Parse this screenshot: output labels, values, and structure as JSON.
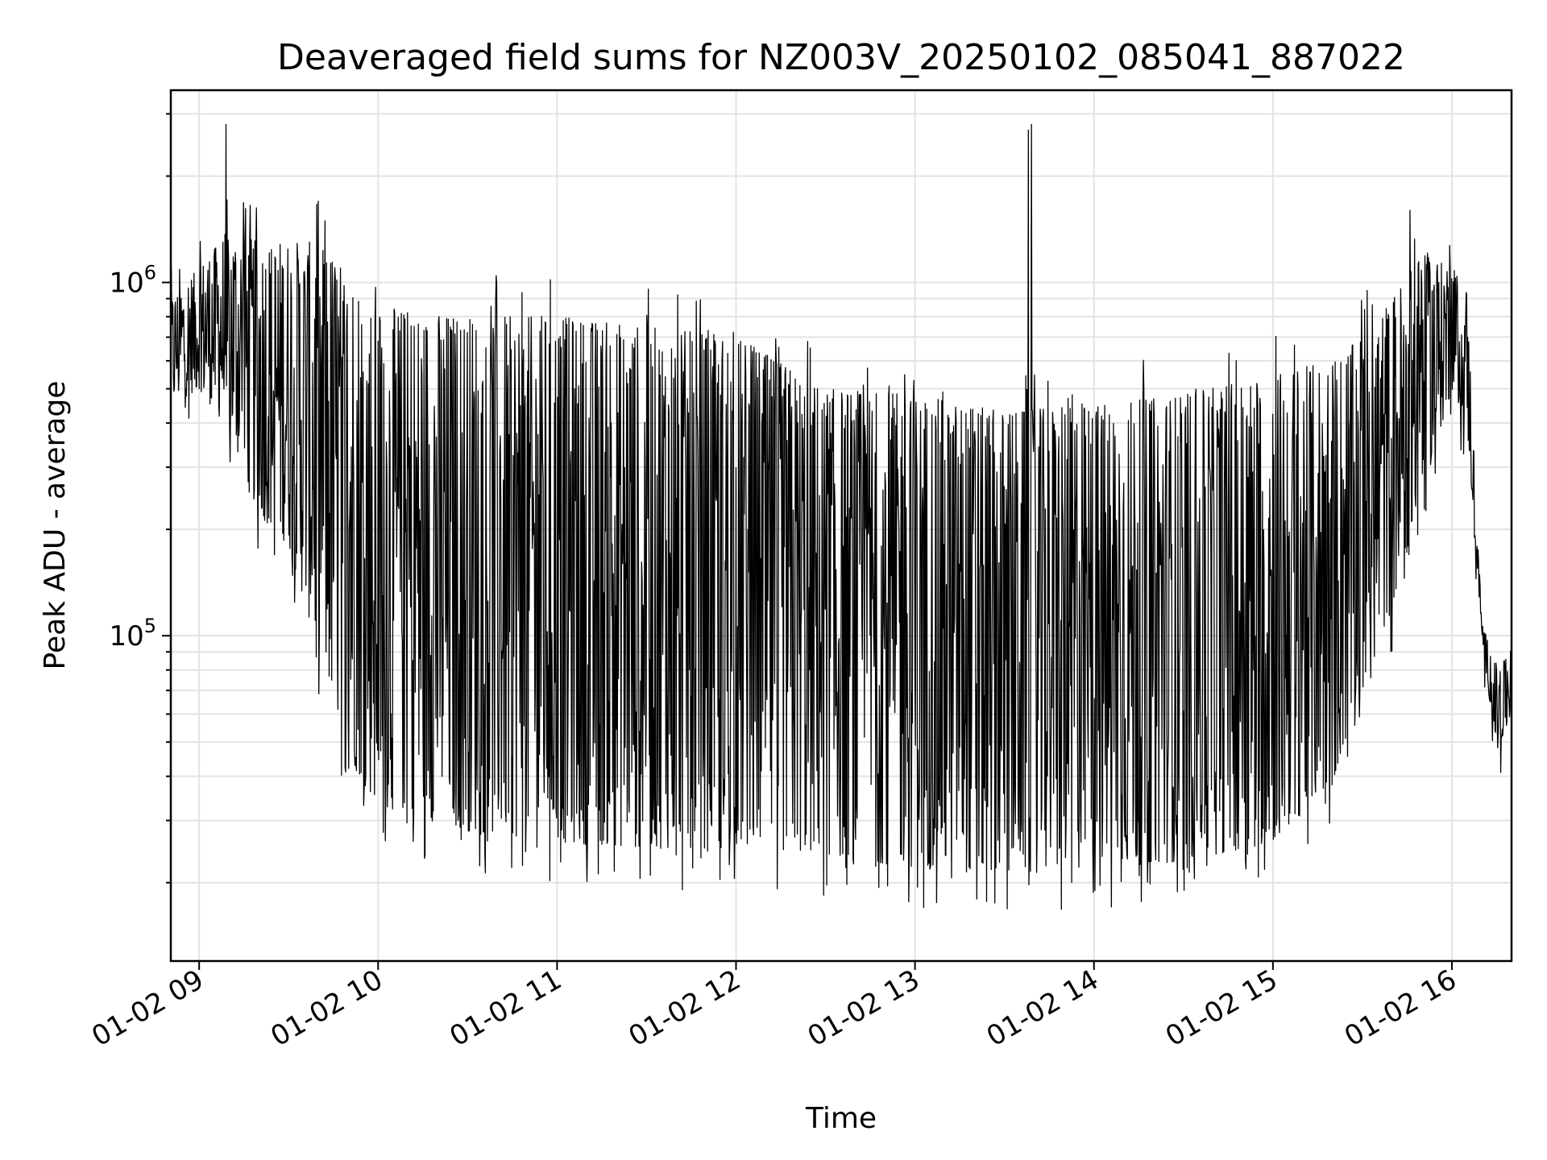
{
  "chart_data": {
    "type": "line",
    "title": "Deaveraged field sums for NZ003V_20250102_085041_887022",
    "xlabel": "Time",
    "ylabel": "Peak ADU - average",
    "yscale": "log",
    "ylim": [
      12000,
      3500000
    ],
    "xlim": [
      "2025-01-02T08:50:30",
      "2025-01-02T16:20:00"
    ],
    "grid": true,
    "line_color": "#000000",
    "x_ticks": [
      {
        "t": "2025-01-02T09:00",
        "label": "01-02 09"
      },
      {
        "t": "2025-01-02T10:00",
        "label": "01-02 10"
      },
      {
        "t": "2025-01-02T11:00",
        "label": "01-02 11"
      },
      {
        "t": "2025-01-02T12:00",
        "label": "01-02 12"
      },
      {
        "t": "2025-01-02T13:00",
        "label": "01-02 13"
      },
      {
        "t": "2025-01-02T14:00",
        "label": "01-02 14"
      },
      {
        "t": "2025-01-02T15:00",
        "label": "01-02 15"
      },
      {
        "t": "2025-01-02T16:00",
        "label": "01-02 16"
      }
    ],
    "y_ticks": [
      {
        "value": 100000,
        "base": "10",
        "exp": "5"
      },
      {
        "value": 1000000,
        "base": "10",
        "exp": "6"
      }
    ],
    "y_minor_ticks": [
      20000,
      30000,
      40000,
      50000,
      60000,
      70000,
      80000,
      90000,
      200000,
      300000,
      400000,
      500000,
      600000,
      700000,
      800000,
      900000,
      2000000,
      3000000
    ],
    "series": [
      {
        "lower_envelope": [
          [
            "2025-01-02T08:50:30",
            450000
          ],
          [
            "2025-01-02T09:00",
            500000
          ],
          [
            "2025-01-02T09:10",
            380000
          ],
          [
            "2025-01-02T09:20",
            220000
          ],
          [
            "2025-01-02T09:30",
            180000
          ],
          [
            "2025-01-02T09:40",
            90000
          ],
          [
            "2025-01-02T09:50",
            45000
          ],
          [
            "2025-01-02T10:00",
            33000
          ],
          [
            "2025-01-02T10:30",
            28000
          ],
          [
            "2025-01-02T11:00",
            26000
          ],
          [
            "2025-01-02T11:30",
            25000
          ],
          [
            "2025-01-02T12:00",
            25000
          ],
          [
            "2025-01-02T12:30",
            24000
          ],
          [
            "2025-01-02T13:00",
            22000
          ],
          [
            "2025-01-02T13:30",
            21000
          ],
          [
            "2025-01-02T14:00",
            22000
          ],
          [
            "2025-01-02T14:30",
            23000
          ],
          [
            "2025-01-02T15:00",
            26000
          ],
          [
            "2025-01-02T15:20",
            38000
          ],
          [
            "2025-01-02T15:30",
            70000
          ],
          [
            "2025-01-02T15:40",
            120000
          ],
          [
            "2025-01-02T15:50",
            250000
          ],
          [
            "2025-01-02T16:00",
            500000
          ],
          [
            "2025-01-02T16:05",
            400000
          ],
          [
            "2025-01-02T16:10",
            100000
          ],
          [
            "2025-01-02T16:15",
            45000
          ],
          [
            "2025-01-02T16:20",
            60000
          ]
        ],
        "upper_envelope": [
          [
            "2025-01-02T08:50:30",
            900000
          ],
          [
            "2025-01-02T09:00",
            1100000
          ],
          [
            "2025-01-02T09:10",
            1400000
          ],
          [
            "2025-01-02T09:20",
            1300000
          ],
          [
            "2025-01-02T09:30",
            1300000
          ],
          [
            "2025-01-02T09:40",
            1300000
          ],
          [
            "2025-01-02T09:50",
            1100000
          ],
          [
            "2025-01-02T10:00",
            850000
          ],
          [
            "2025-01-02T10:30",
            800000
          ],
          [
            "2025-01-02T11:00",
            800000
          ],
          [
            "2025-01-02T11:30",
            750000
          ],
          [
            "2025-01-02T12:00",
            700000
          ],
          [
            "2025-01-02T12:30",
            500000
          ],
          [
            "2025-01-02T13:00",
            480000
          ],
          [
            "2025-01-02T13:30",
            430000
          ],
          [
            "2025-01-02T14:00",
            450000
          ],
          [
            "2025-01-02T14:30",
            480000
          ],
          [
            "2025-01-02T15:00",
            550000
          ],
          [
            "2025-01-02T15:20",
            600000
          ],
          [
            "2025-01-02T15:30",
            700000
          ],
          [
            "2025-01-02T15:40",
            900000
          ],
          [
            "2025-01-02T15:50",
            1200000
          ],
          [
            "2025-01-02T16:00",
            1100000
          ],
          [
            "2025-01-02T16:05",
            950000
          ],
          [
            "2025-01-02T16:10",
            110000
          ],
          [
            "2025-01-02T16:15",
            80000
          ],
          [
            "2025-01-02T16:20",
            90000
          ]
        ],
        "spikes": [
          [
            "2025-01-02T09:09",
            2800000
          ],
          [
            "2025-01-02T13:38",
            2700000
          ],
          [
            "2025-01-02T13:39",
            2800000
          ],
          [
            "2025-01-02T15:46",
            1600000
          ]
        ]
      }
    ]
  }
}
